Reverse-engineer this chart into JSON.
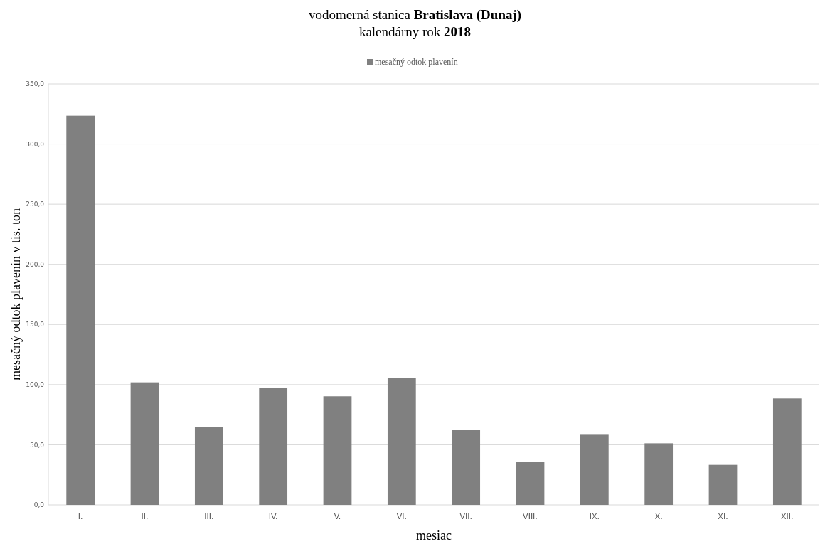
{
  "chart_data": {
    "type": "bar",
    "title": "vodomerná stanica Bratislava (Dunaj)",
    "subtitle": "kalendárny rok 2018",
    "xlabel": "mesiac",
    "ylabel": "mesačný odtok plavenín v tis. ton",
    "categories": [
      "I.",
      "II.",
      "III.",
      "IV.",
      "V.",
      "VI.",
      "VII.",
      "VIII.",
      "IX.",
      "X.",
      "XI.",
      "XII."
    ],
    "series": [
      {
        "name": "mesačný odtok plavenín",
        "color": "#808080",
        "values": [
          323.6,
          101.9,
          65,
          97.5,
          90.3,
          105.6,
          62.5,
          35.5,
          58.3,
          51.2,
          33.3,
          88.5
        ]
      }
    ],
    "ylim": [
      0,
      350
    ],
    "yticks": [
      {
        "value": 0,
        "label": "0,0"
      },
      {
        "value": 50,
        "label": "50,0"
      },
      {
        "value": 100,
        "label": "100,0"
      },
      {
        "value": 150,
        "label": "150,0"
      },
      {
        "value": 200,
        "label": "200,0"
      },
      {
        "value": 250,
        "label": "250,0"
      },
      {
        "value": 300,
        "label": "300,0"
      },
      {
        "value": 350,
        "label": "350,0"
      }
    ],
    "grid": "y",
    "legend": "top"
  }
}
